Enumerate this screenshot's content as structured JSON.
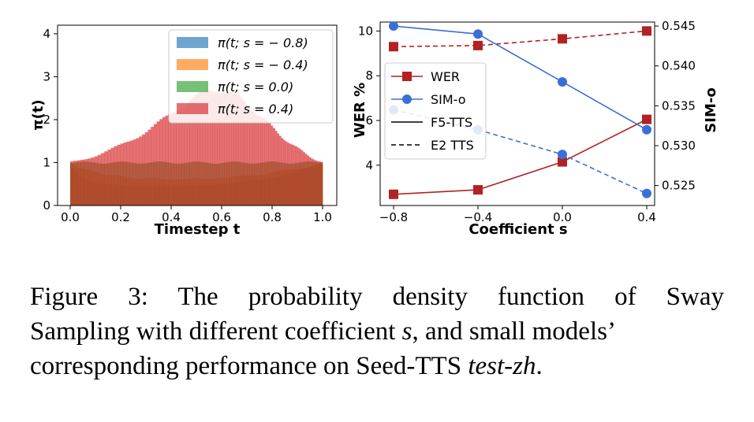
{
  "figure": {
    "chart_data": [
      {
        "type": "histogram",
        "xlabel": "Timestep t",
        "ylabel": "π(t)",
        "xlim": [
          0,
          1
        ],
        "ylim": [
          0,
          4.2
        ],
        "xticks": [
          "0.0",
          "0.2",
          "0.4",
          "0.6",
          "0.8",
          "1.0"
        ],
        "yticks": [
          "0",
          "1",
          "2",
          "3",
          "4"
        ],
        "bins": 100,
        "legend_position": "upper-right",
        "series": [
          {
            "name": "π(t; s = − 0.8)",
            "s": -0.8,
            "color": "#1f77b4"
          },
          {
            "name": "π(t; s = − 0.4)",
            "s": -0.4,
            "color": "#ff7f0e"
          },
          {
            "name": "π(t; s = 0.0)",
            "s": 0.0,
            "color": "#2ca02c"
          },
          {
            "name": "π(t; s = 0.4)",
            "s": 0.4,
            "color": "#d62728"
          }
        ]
      },
      {
        "type": "line",
        "xlabel": "Coefficient s",
        "ylabel": "WER %",
        "y2label": "SIM-o",
        "x": [
          -0.8,
          -0.4,
          0.0,
          0.4
        ],
        "xticks": [
          "−0.8",
          "−0.4",
          "0.0",
          "0.4"
        ],
        "yticks": [
          "4",
          "6",
          "8",
          "10"
        ],
        "y2ticks": [
          "0.525",
          "0.530",
          "0.535",
          "0.540",
          "0.545"
        ],
        "ylim": [
          2.2,
          10.4
        ],
        "y2lim": [
          0.5225,
          0.5455
        ],
        "series": [
          {
            "metric": "WER",
            "model": "F5-TTS",
            "axis": "left",
            "color": "#b22222",
            "marker": "square",
            "linestyle": "solid",
            "values": [
              2.7,
              2.9,
              4.15,
              6.05
            ]
          },
          {
            "metric": "WER",
            "model": "E2 TTS",
            "axis": "left",
            "color": "#b22222",
            "marker": "square",
            "linestyle": "dashed",
            "values": [
              9.3,
              9.35,
              9.65,
              10.0
            ]
          },
          {
            "metric": "SIM-o",
            "model": "F5-TTS",
            "axis": "right",
            "color": "#3b6fd6",
            "marker": "circle",
            "linestyle": "solid",
            "values": [
              0.545,
              0.544,
              0.538,
              0.532
            ]
          },
          {
            "metric": "SIM-o",
            "model": "E2 TTS",
            "axis": "right",
            "color": "#3b6fd6",
            "marker": "circle",
            "linestyle": "dashed",
            "values": [
              0.5345,
              0.532,
              0.5289,
              0.524
            ]
          }
        ],
        "legend": [
          {
            "label": "WER",
            "kind": "square",
            "color": "#b22222"
          },
          {
            "label": "SIM-o",
            "kind": "circle",
            "color": "#3b6fd6"
          },
          {
            "label": "F5-TTS",
            "kind": "solid",
            "color": "#000000"
          },
          {
            "label": "E2 TTS",
            "kind": "dashed",
            "color": "#000000"
          }
        ],
        "legend_position": "center-left"
      }
    ]
  },
  "caption": {
    "label": "Figure 3:",
    "text_1": "The probability density function of Sway",
    "text_2a": "Sampling with different coefficient ",
    "var_s": "s",
    "text_2b": ", and small models’",
    "text_3a": "corresponding performance on Seed-TTS ",
    "dataset": "test-zh",
    "text_3b": "."
  }
}
